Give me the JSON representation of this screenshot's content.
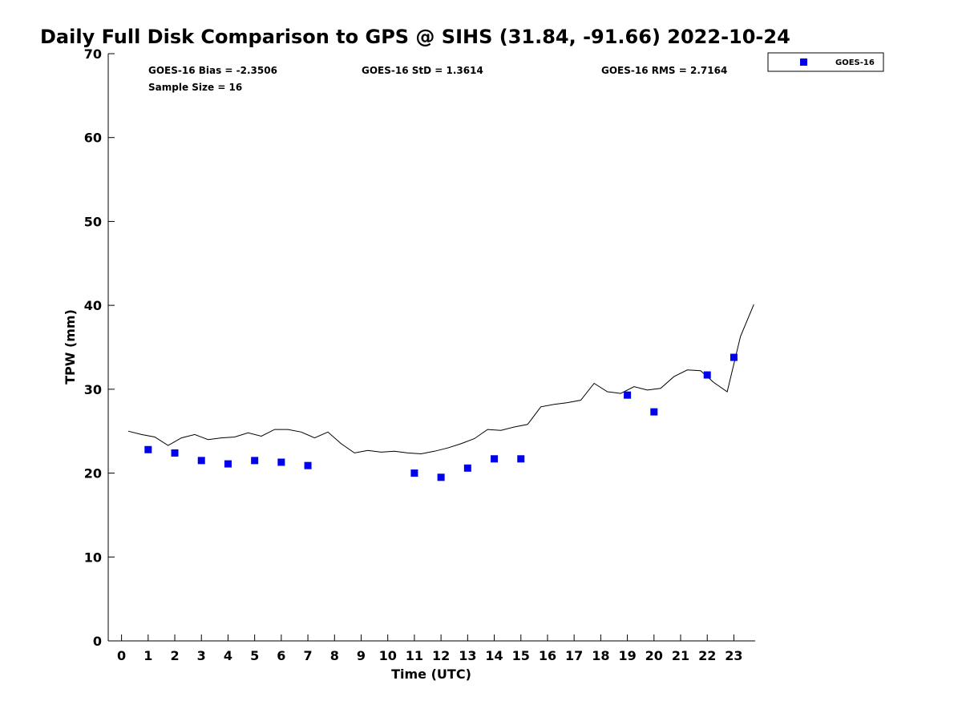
{
  "chart_data": {
    "type": "scatter",
    "title": "Daily Full Disk Comparison to GPS @ SIHS (31.84, -91.66) 2022-10-24",
    "xlabel": "Time (UTC)",
    "ylabel": "TPW (mm)",
    "xlim": [
      -0.5,
      23.8
    ],
    "ylim": [
      0,
      70
    ],
    "xticks": [
      0,
      1,
      2,
      3,
      4,
      5,
      6,
      7,
      8,
      9,
      10,
      11,
      12,
      13,
      14,
      15,
      16,
      17,
      18,
      19,
      20,
      21,
      22,
      23
    ],
    "yticks": [
      0,
      10,
      20,
      30,
      40,
      50,
      60,
      70
    ],
    "grid": false,
    "legend_position": "top-right outside",
    "stats": {
      "bias": "GOES-16 Bias = -2.3506",
      "std": "GOES-16 StD = 1.3614",
      "rms": "GOES-16 RMS = 2.7164",
      "sample": "Sample Size = 16"
    },
    "series": [
      {
        "name": "GOES-16",
        "kind": "markers",
        "marker": "square",
        "color": "#0000ee",
        "x": [
          1,
          2,
          3,
          4,
          5,
          6,
          7,
          11,
          12,
          13,
          14,
          15,
          19,
          20,
          22,
          23
        ],
        "y": [
          22.8,
          22.4,
          21.5,
          21.1,
          21.5,
          21.3,
          20.9,
          20.0,
          19.5,
          20.6,
          21.7,
          21.7,
          29.3,
          27.3,
          31.7,
          33.8
        ]
      },
      {
        "kind": "line",
        "color": "#000000",
        "x": [
          0.25,
          0.75,
          1.25,
          1.75,
          2.25,
          2.75,
          3.25,
          3.75,
          4.25,
          4.75,
          5.25,
          5.75,
          6.25,
          6.75,
          7.25,
          7.75,
          8.25,
          8.75,
          9.25,
          9.75,
          10.25,
          10.75,
          11.25,
          11.75,
          12.25,
          12.75,
          13.25,
          13.75,
          14.25,
          14.75,
          15.25,
          15.75,
          16.25,
          16.75,
          17.25,
          17.75,
          18.25,
          18.75,
          19.25,
          19.75,
          20.25,
          20.75,
          21.25,
          21.75,
          22.25,
          22.75,
          23.25,
          23.75
        ],
        "y": [
          25.0,
          24.6,
          24.3,
          23.3,
          24.2,
          24.6,
          24.0,
          24.2,
          24.3,
          24.8,
          24.4,
          25.2,
          25.2,
          24.9,
          24.2,
          24.9,
          23.5,
          22.4,
          22.7,
          22.5,
          22.6,
          22.4,
          22.3,
          22.6,
          23.0,
          23.5,
          24.1,
          25.2,
          25.1,
          25.5,
          25.8,
          27.9,
          28.2,
          28.4,
          28.7,
          30.7,
          29.7,
          29.5,
          30.3,
          29.9,
          30.1,
          31.5,
          32.3,
          32.2,
          30.8,
          29.7,
          36.3,
          40.1
        ]
      }
    ]
  }
}
